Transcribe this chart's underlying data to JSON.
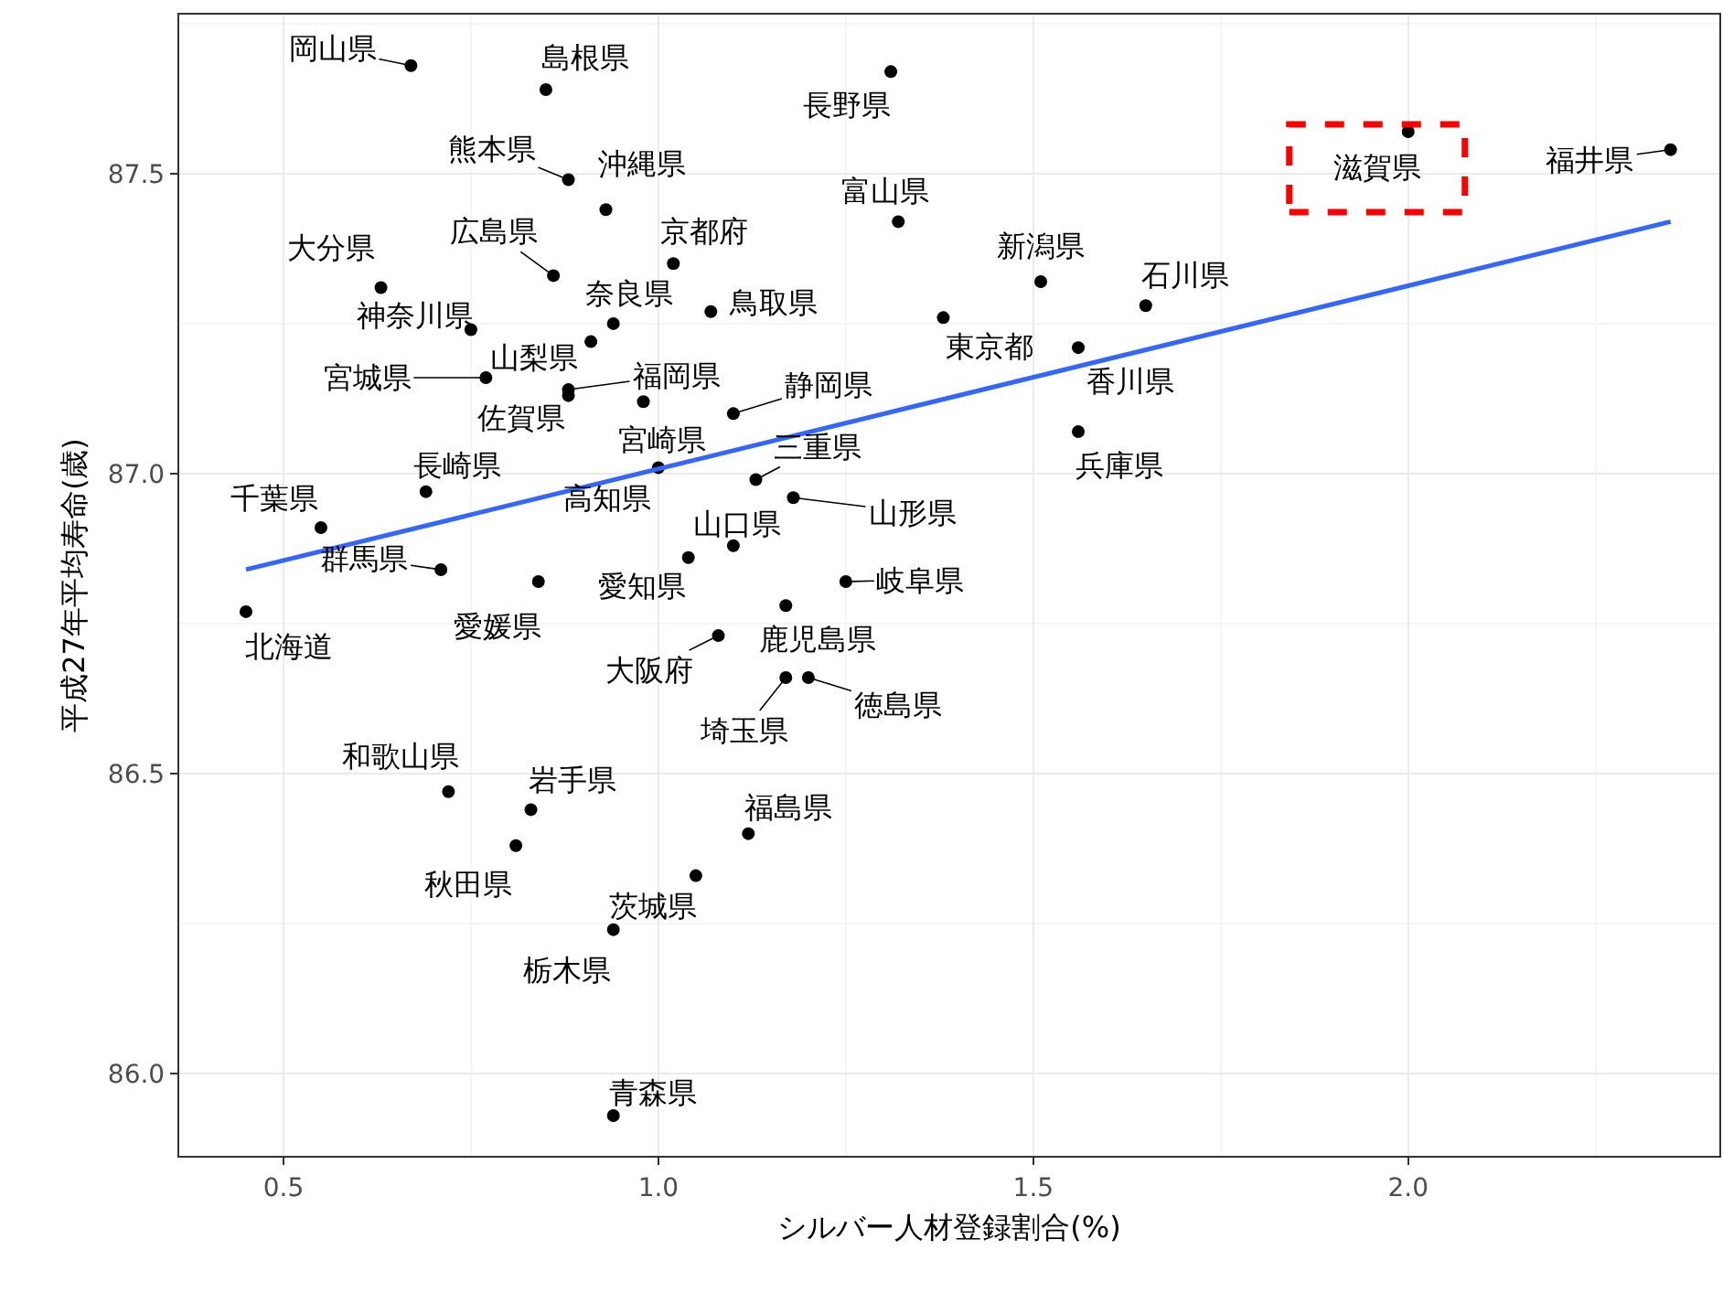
{
  "chart_data": {
    "type": "scatter",
    "xlabel": "シルバー人材登録割合(%)",
    "ylabel": "平成27年平均寿命(歳)",
    "xlim": [
      0.361,
      2.415
    ],
    "ylim": [
      85.863,
      87.765
    ],
    "xticks": [
      0.5,
      {
        "value": 1.0,
        "label": "1.0"
      },
      1.5,
      {
        "value": 2.0,
        "label": "2.0"
      }
    ],
    "yticks": [
      {
        "value": 86.0,
        "label": "86.0"
      },
      86.5,
      {
        "value": 87.0,
        "label": "87.0"
      },
      87.5
    ],
    "grid": true,
    "marker": "circle",
    "series": [
      {
        "color": "#000000",
        "x": [
          0.67,
          0.85,
          0.88,
          0.93,
          1.02,
          0.86,
          0.63,
          0.94,
          1.07,
          0.75,
          0.91,
          0.77,
          0.88,
          0.88,
          0.98,
          1.0,
          1.31,
          1.32,
          1.51,
          1.65,
          1.38,
          1.56,
          1.56,
          1.1,
          1.13,
          1.18,
          1.1,
          1.25,
          2.35,
          0.71,
          0.55,
          0.69,
          0.45,
          0.84,
          1.04,
          1.17,
          1.08,
          1.17,
          1.2,
          0.72,
          0.83,
          1.12,
          0.81,
          1.05,
          0.94,
          0.94,
          2.0
        ],
        "values": [
          87.68,
          87.64,
          87.49,
          87.44,
          87.35,
          87.33,
          87.31,
          87.25,
          87.27,
          87.24,
          87.22,
          87.16,
          87.14,
          87.13,
          87.12,
          87.01,
          87.67,
          87.42,
          87.32,
          87.28,
          87.26,
          87.21,
          87.07,
          87.1,
          86.99,
          86.96,
          86.88,
          86.82,
          87.54,
          86.84,
          86.91,
          86.97,
          86.77,
          86.82,
          86.86,
          86.78,
          86.73,
          86.66,
          86.66,
          86.47,
          86.44,
          86.4,
          86.38,
          86.33,
          86.24,
          85.93,
          87.57
        ]
      },
      {
        "type": "line",
        "marker": "none",
        "color": "#3366ff",
        "x": [
          0.45,
          2.35
        ],
        "values": [
          86.84,
          87.42
        ]
      }
    ],
    "annotations": [
      {
        "text": "岡山県",
        "x": 0.67,
        "y": 87.68
      },
      {
        "text": "島根県",
        "x": 0.85,
        "y": 87.64
      },
      {
        "text": "熊本県",
        "x": 0.88,
        "y": 87.49
      },
      {
        "text": "沖縄県",
        "x": 0.93,
        "y": 87.44
      },
      {
        "text": "京都府",
        "x": 1.02,
        "y": 87.35
      },
      {
        "text": "広島県",
        "x": 0.86,
        "y": 87.33
      },
      {
        "text": "大分県",
        "x": 0.63,
        "y": 87.31
      },
      {
        "text": "奈良県",
        "x": 0.94,
        "y": 87.25
      },
      {
        "text": "鳥取県",
        "x": 1.07,
        "y": 87.27
      },
      {
        "text": "神奈川県",
        "x": 0.75,
        "y": 87.24
      },
      {
        "text": "山梨県",
        "x": 0.91,
        "y": 87.22
      },
      {
        "text": "宮城県",
        "x": 0.77,
        "y": 87.16
      },
      {
        "text": "福岡県",
        "x": 0.88,
        "y": 87.14
      },
      {
        "text": "佐賀県",
        "x": 0.88,
        "y": 87.13
      },
      {
        "text": "宮崎県",
        "x": 0.98,
        "y": 87.12
      },
      {
        "text": "高知県",
        "x": 1.0,
        "y": 87.01
      },
      {
        "text": "長野県",
        "x": 1.31,
        "y": 87.67
      },
      {
        "text": "富山県",
        "x": 1.32,
        "y": 87.42
      },
      {
        "text": "新潟県",
        "x": 1.51,
        "y": 87.32
      },
      {
        "text": "石川県",
        "x": 1.65,
        "y": 87.28
      },
      {
        "text": "東京都",
        "x": 1.38,
        "y": 87.26
      },
      {
        "text": "香川県",
        "x": 1.56,
        "y": 87.21
      },
      {
        "text": "兵庫県",
        "x": 1.56,
        "y": 87.07
      },
      {
        "text": "静岡県",
        "x": 1.1,
        "y": 87.1
      },
      {
        "text": "三重県",
        "x": 1.13,
        "y": 86.99
      },
      {
        "text": "山形県",
        "x": 1.18,
        "y": 86.96
      },
      {
        "text": "山口県",
        "x": 1.1,
        "y": 86.88
      },
      {
        "text": "岐阜県",
        "x": 1.25,
        "y": 86.82
      },
      {
        "text": "福井県",
        "x": 2.35,
        "y": 87.54
      },
      {
        "text": "群馬県",
        "x": 0.71,
        "y": 86.84
      },
      {
        "text": "千葉県",
        "x": 0.55,
        "y": 86.91
      },
      {
        "text": "長崎県",
        "x": 0.69,
        "y": 86.97
      },
      {
        "text": "北海道",
        "x": 0.45,
        "y": 86.77
      },
      {
        "text": "愛媛県",
        "x": 0.84,
        "y": 86.82
      },
      {
        "text": "愛知県",
        "x": 1.04,
        "y": 86.86
      },
      {
        "text": "鹿児島県",
        "x": 1.17,
        "y": 86.78
      },
      {
        "text": "大阪府",
        "x": 1.08,
        "y": 86.73
      },
      {
        "text": "埼玉県",
        "x": 1.17,
        "y": 86.66
      },
      {
        "text": "徳島県",
        "x": 1.2,
        "y": 86.66
      },
      {
        "text": "和歌山県",
        "x": 0.72,
        "y": 86.47
      },
      {
        "text": "岩手県",
        "x": 0.83,
        "y": 86.44
      },
      {
        "text": "福島県",
        "x": 1.12,
        "y": 86.4
      },
      {
        "text": "秋田県",
        "x": 0.81,
        "y": 86.38
      },
      {
        "text": "茨城県",
        "x": 1.05,
        "y": 86.33
      },
      {
        "text": "栃木県",
        "x": 0.94,
        "y": 86.24
      },
      {
        "text": "青森県",
        "x": 0.94,
        "y": 85.93
      },
      {
        "text": "滋賀県",
        "x": 2.0,
        "y": 87.57
      }
    ]
  }
}
